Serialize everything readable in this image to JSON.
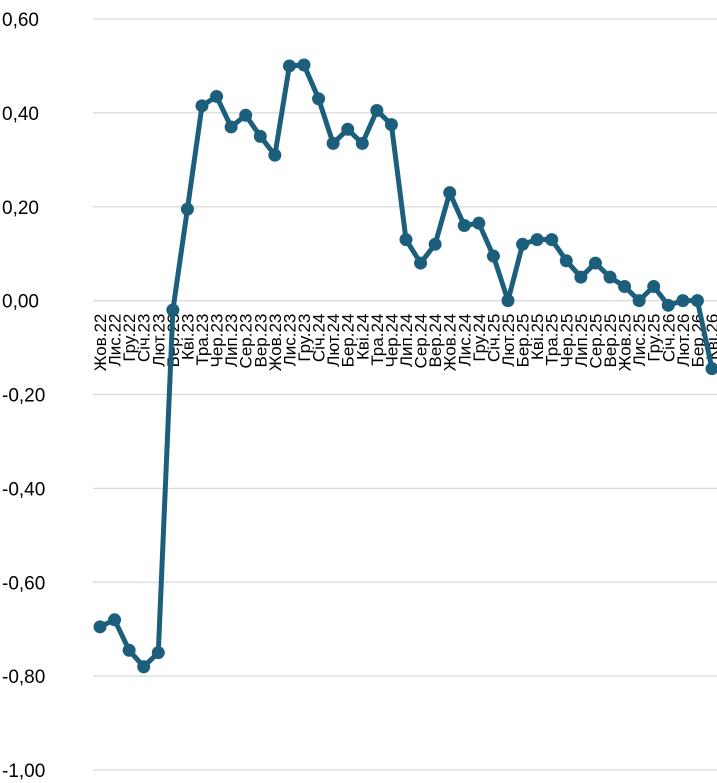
{
  "chart_data": {
    "type": "line",
    "title": "",
    "xlabel": "",
    "ylabel": "",
    "ylim": [
      -1.0,
      0.6
    ],
    "yticks": [
      "-1,00",
      "-0,80",
      "-0,60",
      "-0,40",
      "-0,20",
      "0,00",
      "0,20",
      "0,40",
      "0,60"
    ],
    "ytick_values": [
      -1.0,
      -0.8,
      -0.6,
      -0.4,
      -0.2,
      0.0,
      0.2,
      0.4,
      0.6
    ],
    "grid": true,
    "legend": "none",
    "line_color": "#1b5f7c",
    "categories": [
      "Жов.22",
      "Лис.22",
      "Гру.22",
      "Січ.23",
      "Лют.23",
      "Бер.23",
      "Кві.23",
      "Тра.23",
      "Чер.23",
      "Лип.23",
      "Сер.23",
      "Вер.23",
      "Жов.23",
      "Лис.23",
      "Гру.23",
      "Січ.24",
      "Лют.24",
      "Бер.24",
      "Кві.24",
      "Тра.24",
      "Чер.24",
      "Лип.24",
      "Сер.24",
      "Вер.24",
      "Жов.24",
      "Лис.24",
      "Гру.24",
      "Січ.25",
      "Лют.25",
      "Бер.25",
      "Кві.25",
      "Тра.25",
      "Чер.25",
      "Лип.25",
      "Сер.25",
      "Вер.25",
      "Жов.25",
      "Лис.25",
      "Гру.25",
      "Січ.26",
      "Лют.26",
      "Бер.26",
      "Кві.26"
    ],
    "series": [
      {
        "values": [
          -0.695,
          -0.68,
          -0.745,
          -0.78,
          -0.75,
          -0.02,
          0.195,
          0.415,
          0.435,
          0.37,
          0.395,
          0.35,
          0.31,
          0.5,
          0.502,
          0.43,
          0.335,
          0.365,
          0.335,
          0.405,
          0.375,
          0.13,
          0.08,
          0.12,
          0.23,
          0.16,
          0.165,
          0.095,
          0.0,
          0.12,
          0.13,
          0.13,
          0.085,
          0.05,
          0.08,
          0.05,
          0.03,
          0.0,
          0.03,
          -0.01,
          0.0,
          0.0,
          -0.145
        ]
      }
    ]
  }
}
